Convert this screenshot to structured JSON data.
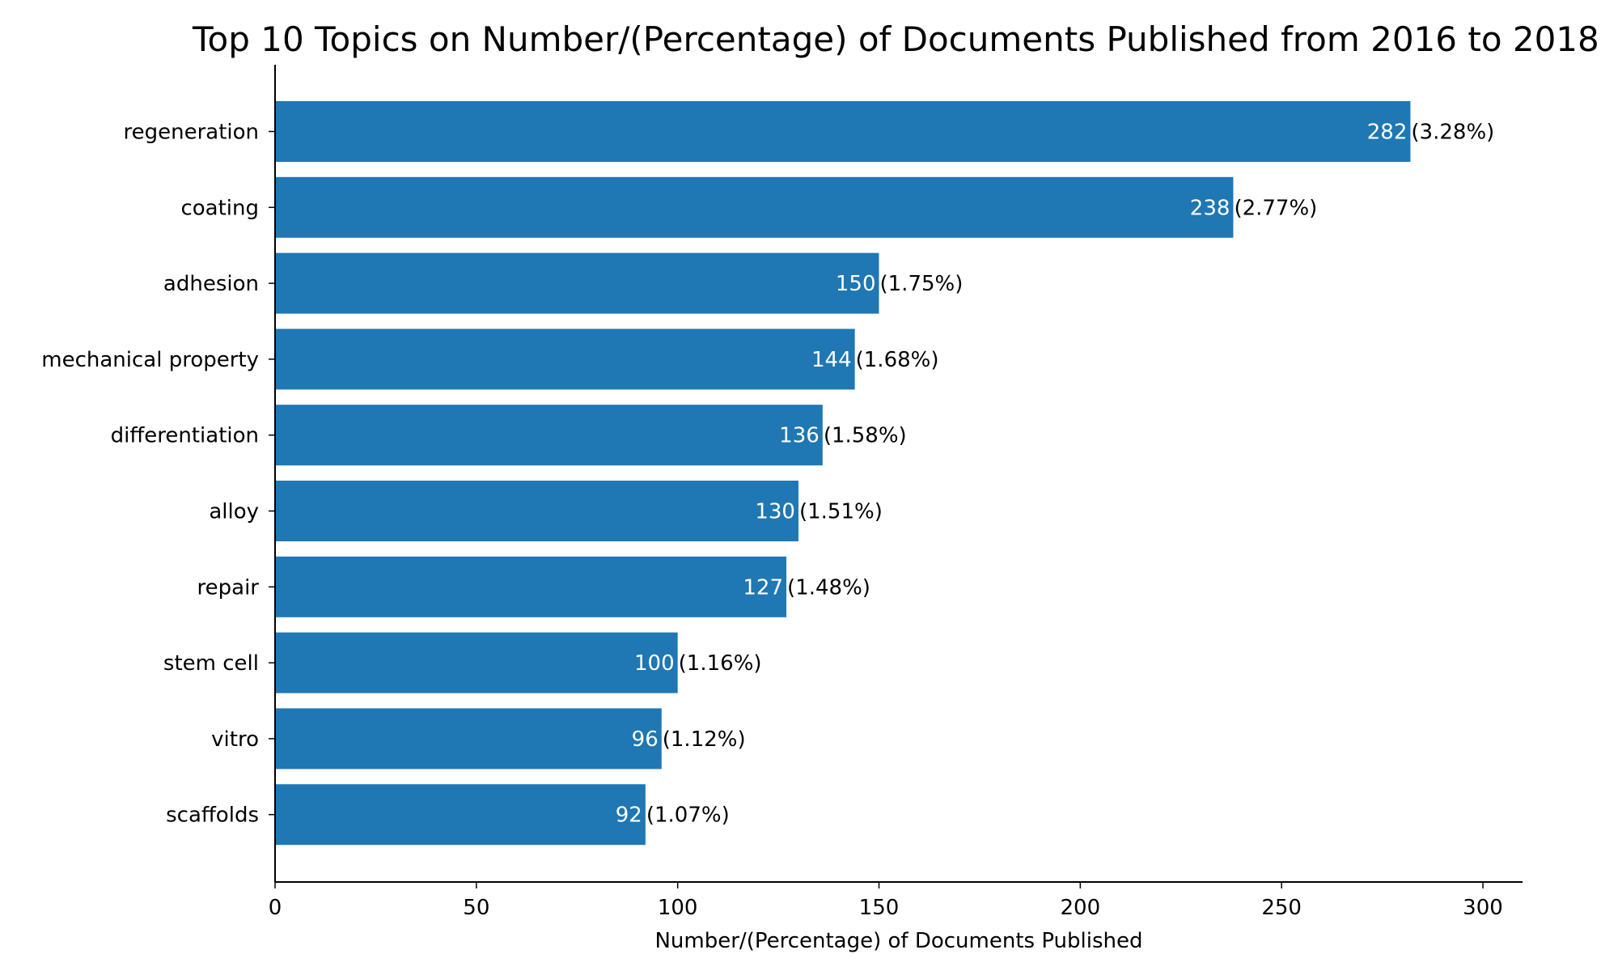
{
  "chart_data": {
    "type": "bar",
    "orientation": "horizontal",
    "title": "Top 10 Topics on Number/(Percentage) of Documents Published from 2016 to 2018",
    "xlabel": "Number/(Percentage) of Documents Published",
    "ylabel": "",
    "xlim": [
      0,
      310
    ],
    "xticks": [
      0,
      50,
      100,
      150,
      200,
      250,
      300
    ],
    "categories": [
      "regeneration",
      "coating",
      "adhesion",
      "mechanical property",
      "differentiation",
      "alloy",
      "repair",
      "stem cell",
      "vitro",
      "scaffolds"
    ],
    "values": [
      282,
      238,
      150,
      144,
      136,
      130,
      127,
      100,
      96,
      92
    ],
    "percent_labels": [
      "(3.28%)",
      "(2.77%)",
      "(1.75%)",
      "(1.68%)",
      "(1.58%)",
      "(1.51%)",
      "(1.48%)",
      "(1.16%)",
      "(1.12%)",
      "(1.07%)"
    ],
    "bar_color": "#1f77b4",
    "grid": false,
    "legend": "none"
  }
}
